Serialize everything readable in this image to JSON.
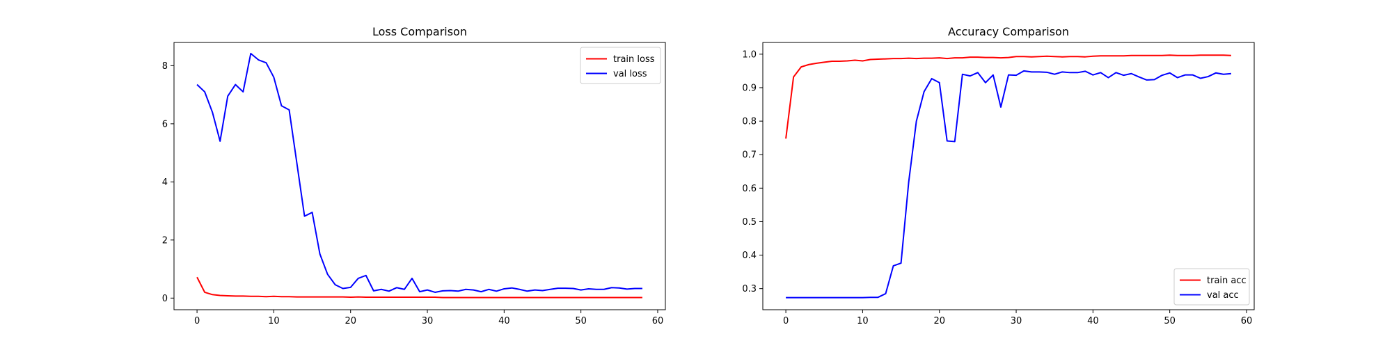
{
  "chart_data": [
    {
      "type": "line",
      "title": "Loss Comparison",
      "xlabel": "",
      "ylabel": "",
      "xlim": [
        -3,
        61
      ],
      "ylim": [
        -0.4,
        8.8
      ],
      "xticks": [
        0,
        10,
        20,
        30,
        40,
        50,
        60
      ],
      "yticks": [
        0,
        2,
        4,
        6,
        8
      ],
      "grid": false,
      "legend_position": "top-right",
      "series": [
        {
          "name": "train loss",
          "color": "#ff0000",
          "x": [
            0,
            1,
            2,
            3,
            4,
            5,
            6,
            7,
            8,
            9,
            10,
            11,
            12,
            13,
            14,
            15,
            16,
            17,
            18,
            19,
            20,
            21,
            22,
            23,
            24,
            25,
            26,
            27,
            28,
            29,
            30,
            31,
            32,
            33,
            34,
            35,
            36,
            37,
            38,
            39,
            40,
            41,
            42,
            43,
            44,
            45,
            46,
            47,
            48,
            49,
            50,
            51,
            52,
            53,
            54,
            55,
            56,
            57,
            58
          ],
          "y": [
            0.72,
            0.2,
            0.12,
            0.09,
            0.08,
            0.07,
            0.07,
            0.06,
            0.06,
            0.05,
            0.06,
            0.05,
            0.05,
            0.04,
            0.04,
            0.04,
            0.04,
            0.04,
            0.04,
            0.04,
            0.03,
            0.04,
            0.03,
            0.03,
            0.03,
            0.03,
            0.03,
            0.03,
            0.03,
            0.03,
            0.03,
            0.03,
            0.02,
            0.02,
            0.02,
            0.02,
            0.02,
            0.02,
            0.02,
            0.02,
            0.02,
            0.02,
            0.02,
            0.02,
            0.02,
            0.02,
            0.02,
            0.02,
            0.02,
            0.02,
            0.02,
            0.02,
            0.02,
            0.02,
            0.02,
            0.02,
            0.02,
            0.02,
            0.02
          ]
        },
        {
          "name": "val loss",
          "color": "#0000ff",
          "x": [
            0,
            1,
            2,
            3,
            4,
            5,
            6,
            7,
            8,
            9,
            10,
            11,
            12,
            13,
            14,
            15,
            16,
            17,
            18,
            19,
            20,
            21,
            22,
            23,
            24,
            25,
            26,
            27,
            28,
            29,
            30,
            31,
            32,
            33,
            34,
            35,
            36,
            37,
            38,
            39,
            40,
            41,
            42,
            43,
            44,
            45,
            46,
            47,
            48,
            49,
            50,
            51,
            52,
            53,
            54,
            55,
            56,
            57,
            58
          ],
          "y": [
            7.35,
            7.1,
            6.4,
            5.4,
            6.95,
            7.35,
            7.1,
            8.42,
            8.2,
            8.1,
            7.6,
            6.62,
            6.48,
            4.65,
            2.82,
            2.95,
            1.52,
            0.82,
            0.46,
            0.33,
            0.37,
            0.68,
            0.78,
            0.25,
            0.3,
            0.24,
            0.36,
            0.3,
            0.68,
            0.22,
            0.28,
            0.2,
            0.25,
            0.26,
            0.24,
            0.3,
            0.28,
            0.22,
            0.3,
            0.24,
            0.32,
            0.35,
            0.3,
            0.24,
            0.28,
            0.26,
            0.3,
            0.34,
            0.34,
            0.33,
            0.28,
            0.32,
            0.3,
            0.3,
            0.36,
            0.35,
            0.31,
            0.33,
            0.33
          ]
        }
      ]
    },
    {
      "type": "line",
      "title": "Accuracy Comparison",
      "xlabel": "",
      "ylabel": "",
      "xlim": [
        -3,
        61
      ],
      "ylim": [
        0.237,
        1.035
      ],
      "xticks": [
        0,
        10,
        20,
        30,
        40,
        50,
        60
      ],
      "yticks": [
        0.3,
        0.4,
        0.5,
        0.6,
        0.7,
        0.8,
        0.9,
        1.0
      ],
      "ytick_labels": [
        "0.3",
        "0.4",
        "0.5",
        "0.6",
        "0.7",
        "0.8",
        "0.9",
        "1.0"
      ],
      "grid": false,
      "legend_position": "bottom-right",
      "series": [
        {
          "name": "train acc",
          "color": "#ff0000",
          "x": [
            0,
            1,
            2,
            3,
            4,
            5,
            6,
            7,
            8,
            9,
            10,
            11,
            12,
            13,
            14,
            15,
            16,
            17,
            18,
            19,
            20,
            21,
            22,
            23,
            24,
            25,
            26,
            27,
            28,
            29,
            30,
            31,
            32,
            33,
            34,
            35,
            36,
            37,
            38,
            39,
            40,
            41,
            42,
            43,
            44,
            45,
            46,
            47,
            48,
            49,
            50,
            51,
            52,
            53,
            54,
            55,
            56,
            57,
            58
          ],
          "y": [
            0.748,
            0.932,
            0.962,
            0.969,
            0.973,
            0.976,
            0.979,
            0.979,
            0.98,
            0.982,
            0.98,
            0.984,
            0.985,
            0.986,
            0.987,
            0.987,
            0.988,
            0.987,
            0.988,
            0.988,
            0.989,
            0.987,
            0.989,
            0.989,
            0.991,
            0.991,
            0.99,
            0.99,
            0.989,
            0.99,
            0.993,
            0.993,
            0.992,
            0.993,
            0.994,
            0.993,
            0.992,
            0.993,
            0.993,
            0.992,
            0.994,
            0.995,
            0.995,
            0.995,
            0.995,
            0.996,
            0.996,
            0.996,
            0.996,
            0.996,
            0.997,
            0.996,
            0.996,
            0.996,
            0.997,
            0.997,
            0.997,
            0.997,
            0.996
          ]
        },
        {
          "name": "val acc",
          "color": "#0000ff",
          "x": [
            0,
            1,
            2,
            3,
            4,
            5,
            6,
            7,
            8,
            9,
            10,
            11,
            12,
            13,
            14,
            15,
            16,
            17,
            18,
            19,
            20,
            21,
            22,
            23,
            24,
            25,
            26,
            27,
            28,
            29,
            30,
            31,
            32,
            33,
            34,
            35,
            36,
            37,
            38,
            39,
            40,
            41,
            42,
            43,
            44,
            45,
            46,
            47,
            48,
            49,
            50,
            51,
            52,
            53,
            54,
            55,
            56,
            57,
            58
          ],
          "y": [
            0.273,
            0.273,
            0.273,
            0.273,
            0.273,
            0.273,
            0.273,
            0.273,
            0.273,
            0.273,
            0.273,
            0.274,
            0.274,
            0.285,
            0.368,
            0.376,
            0.618,
            0.8,
            0.888,
            0.927,
            0.915,
            0.741,
            0.739,
            0.94,
            0.935,
            0.945,
            0.915,
            0.938,
            0.842,
            0.938,
            0.937,
            0.95,
            0.947,
            0.947,
            0.946,
            0.94,
            0.947,
            0.945,
            0.945,
            0.949,
            0.938,
            0.945,
            0.93,
            0.945,
            0.937,
            0.942,
            0.932,
            0.923,
            0.924,
            0.937,
            0.944,
            0.93,
            0.938,
            0.938,
            0.928,
            0.933,
            0.944,
            0.94,
            0.942
          ]
        }
      ]
    }
  ]
}
